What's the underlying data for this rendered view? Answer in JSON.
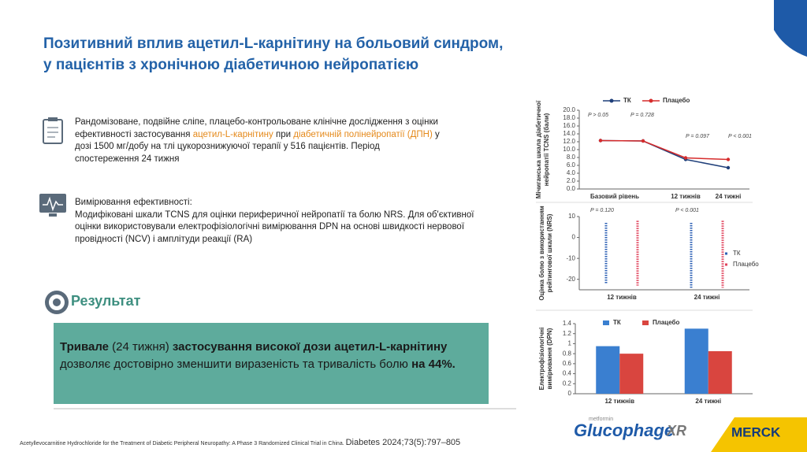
{
  "slide": {
    "title": [
      "Позитивний вплив ацетил-L-карнітину на больовий синдром,",
      "у пацієнтів з хронічною діабетичною нейропатією"
    ],
    "study": {
      "parts": [
        {
          "text": "Рандомізоване, подвійне сліпе, плацебо-контрольоване клінічне дослідження з оцінки ефективності застосування "
        },
        {
          "text": "ацетил-L-карнітину",
          "style": "orange"
        },
        {
          "text": " при "
        },
        {
          "text": "діабетичній полінейропатії (ДПН)",
          "style": "orange"
        },
        {
          "text": " у дозі 1500 мг/добу на тлі цукорознижуючої терапії у 516 пацієнтів. Період спостереження 24 тижня"
        }
      ]
    },
    "measure": {
      "heading": "Вимірювання ефективності:",
      "text": "Модифіковані шкали TCNS для оцінки периферичної нейропатії та болю NRS. Для об'єктивної оцінки використовували електрофізіологічні вимірювання DPN на основі швидкості нервової провідності (NCV) і амплітуди реакції (RA)"
    },
    "result": {
      "heading": "Результат",
      "parts": [
        {
          "text": "Тривале",
          "style": "bold"
        },
        {
          "text": " (24 тижня) "
        },
        {
          "text": "застосування високої дози ацетил-L-карнітину",
          "style": "bold"
        },
        {
          "text": " дозволяє достовірно зменшити виразеність та тривалість болю "
        },
        {
          "text": "на 44%.",
          "style": "bold"
        }
      ]
    },
    "citation": "Acetyllevocarnitine Hydrochloride for the Treatment of Diabetic Peripheral Neuropathy: A Phase 3 Randomized Clinical Trial in China.",
    "journal": "Diabetes 2024;73(5):797–805",
    "logo": {
      "small": "metformin",
      "name": "Glucophage",
      "suffix": "XR",
      "company": "MERCK"
    }
  },
  "chart_data": [
    {
      "type": "line",
      "ylabel": [
        "Мічиганська шкала діабетичної",
        "нейропатії TCNS (бали)"
      ],
      "categories": [
        "Базовий рівень",
        null,
        "12 тижнів",
        "24 тижні"
      ],
      "series": [
        {
          "name": "ТК",
          "color": "#1f3f7a",
          "values": [
            12.3,
            12.2,
            7.5,
            5.4
          ]
        },
        {
          "name": "Плацебо",
          "color": "#d62c2c",
          "values": [
            12.3,
            12.2,
            7.9,
            7.5
          ]
        }
      ],
      "annotations": [
        "P > 0.05",
        "P = 0.728",
        "P = 0.097",
        "P < 0.001"
      ],
      "ylim": [
        0,
        20
      ],
      "yticks": [
        {
          "value": 0,
          "label": "0.0"
        },
        {
          "value": 2,
          "label": "2.0"
        },
        {
          "value": 4,
          "label": "4.0"
        },
        {
          "value": 6,
          "label": "6.0"
        },
        {
          "value": 8,
          "label": "8.0"
        },
        {
          "value": 10,
          "label": "10.0"
        },
        {
          "value": 12,
          "label": "12.0"
        },
        {
          "value": 14,
          "label": "14.0"
        },
        {
          "value": 16,
          "label": "16.0"
        },
        {
          "value": 18,
          "label": "18.0"
        },
        {
          "value": 20,
          "label": "20.0"
        }
      ]
    },
    {
      "type": "strip",
      "ylabel": [
        "Оцінка болю з використанням",
        "рейтингової шкали (NRS)"
      ],
      "categories": [
        "12 тижнів",
        "24 тижні"
      ],
      "series": [
        {
          "name": "ТК",
          "color": "#2b5fb4",
          "low": [
            -22,
            -24
          ],
          "high": [
            7,
            7
          ]
        },
        {
          "name": "Плацебо",
          "color": "#e0405a",
          "low": [
            -23,
            -24
          ],
          "high": [
            8,
            8
          ]
        }
      ],
      "annotations": [
        "P = 0.120",
        "P < 0.001"
      ],
      "ylim": [
        -25,
        10
      ],
      "yticks": [
        10,
        0,
        -10,
        -20
      ]
    },
    {
      "type": "bar",
      "ylabel": [
        "Електрофізіологічні",
        "вимірювання (DPN)"
      ],
      "categories": [
        "12 тижнів",
        "24 тижні"
      ],
      "series": [
        {
          "name": "ТК",
          "color": "#3a7fd0",
          "values": [
            0.95,
            1.3
          ]
        },
        {
          "name": "Плацебо",
          "color": "#d9453f",
          "values": [
            0.8,
            0.85
          ]
        }
      ],
      "ylim": [
        0,
        1.4
      ],
      "yticks": [
        0,
        0.2,
        0.4,
        0.6,
        0.8,
        1,
        1.2,
        1.4
      ]
    }
  ]
}
